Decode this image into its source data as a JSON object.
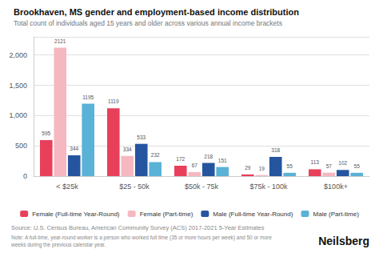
{
  "chart_data": {
    "type": "bar",
    "title": "Brookhaven, MS gender and employment-based income distribution",
    "subtitle": "Total count of individuals aged 15 years and older across various annual income brackets",
    "categories": [
      "< $25k",
      "$25 - 50k",
      "$50k - 75k",
      "$75k - 100k",
      "$100k+"
    ],
    "series": [
      {
        "name": "Female (Full-time Year-Round)",
        "color": "#e8405a",
        "values": [
          595,
          1119,
          172,
          29,
          113
        ]
      },
      {
        "name": "Female (Part-time)",
        "color": "#f5b8c0",
        "values": [
          2121,
          334,
          67,
          19,
          57
        ]
      },
      {
        "name": "Male (Full-time Year-Round)",
        "color": "#2655a0",
        "values": [
          344,
          533,
          218,
          318,
          102
        ]
      },
      {
        "name": "Male (Part-time)",
        "color": "#5ab2d6",
        "values": [
          1195,
          232,
          151,
          55,
          55
        ]
      }
    ],
    "annotations": [
      "Source: U.S. Census Bureau, American Community Survey (ACS) 2017-2021 5-Year Estimates",
      "Note: A full-time, year-round worker is a person who worked full time (35 or more hours per week) and 50 or more weeks during the previous calendar year.",
      "Neilsberg"
    ],
    "ylim": [
      0,
      2300
    ],
    "yticks": [
      0,
      500,
      1000,
      1500,
      2000
    ],
    "grid": true,
    "data_labels": true,
    "legend": "bottom"
  }
}
